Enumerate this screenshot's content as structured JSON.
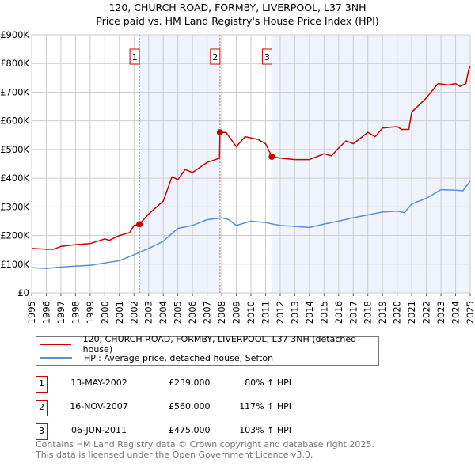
{
  "chart_data": {
    "type": "line",
    "title": "120, CHURCH ROAD, FORMBY, LIVERPOOL, L37 3NH",
    "subtitle": "Price paid vs. HM Land Registry's House Price Index (HPI)",
    "xlabel": "",
    "ylabel": "",
    "xlim": [
      1995,
      2025
    ],
    "ylim": [
      0,
      900000
    ],
    "y_ticks": [
      0,
      100000,
      200000,
      300000,
      400000,
      500000,
      600000,
      700000,
      800000,
      900000
    ],
    "y_tick_labels": [
      "£0",
      "£100K",
      "£200K",
      "£300K",
      "£400K",
      "£500K",
      "£600K",
      "£700K",
      "£800K",
      "£900K"
    ],
    "x_ticks": [
      "1995",
      "1996",
      "1997",
      "1998",
      "1999",
      "2000",
      "2001",
      "2002",
      "2003",
      "2004",
      "2005",
      "2006",
      "2007",
      "2008",
      "2009",
      "2010",
      "2011",
      "2012",
      "2013",
      "2014",
      "2015",
      "2016",
      "2017",
      "2018",
      "2019",
      "2020",
      "2021",
      "2022",
      "2023",
      "2024",
      "2025"
    ],
    "grid": true,
    "shaded_ranges": [
      [
        2002.37,
        2007.88
      ],
      [
        2011.43,
        2025
      ]
    ],
    "series": [
      {
        "name": "120, CHURCH ROAD, FORMBY, LIVERPOOL, L37 3NH (detached house)",
        "color": "#cc0000",
        "x": [
          1995,
          1996,
          1996.5,
          1997,
          1998,
          1999,
          2000,
          2000.3,
          2001,
          2001.7,
          2002,
          2002.37,
          2003,
          2004,
          2004.6,
          2005,
          2005.5,
          2006,
          2007,
          2007.85,
          2007.88,
          2008.3,
          2009,
          2009.6,
          2010.5,
          2011,
          2011.43,
          2012,
          2013,
          2014,
          2015,
          2015.5,
          2016,
          2016.5,
          2017,
          2018,
          2018.5,
          2019,
          2020,
          2020.3,
          2020.8,
          2021,
          2022,
          2022.8,
          2023.5,
          2024,
          2024.3,
          2024.7,
          2024.9,
          2025
        ],
        "y": [
          155000,
          152000,
          152000,
          162000,
          168000,
          172000,
          188000,
          183000,
          200000,
          210000,
          235000,
          239000,
          275000,
          320000,
          405000,
          395000,
          430000,
          420000,
          455000,
          470000,
          560000,
          560000,
          510000,
          545000,
          535000,
          520000,
          475000,
          470000,
          465000,
          465000,
          485000,
          478000,
          505000,
          530000,
          520000,
          560000,
          545000,
          575000,
          580000,
          570000,
          570000,
          630000,
          680000,
          730000,
          725000,
          730000,
          720000,
          730000,
          780000,
          790000
        ]
      },
      {
        "name": "HPI: Average price, detached house, Sefton",
        "color": "#5b8fd4",
        "x": [
          1995,
          1996,
          1997,
          1998,
          1999,
          2000,
          2001,
          2002,
          2003,
          2004,
          2005,
          2006,
          2007,
          2008,
          2008.5,
          2009,
          2010,
          2011,
          2012,
          2013,
          2014,
          2015,
          2016,
          2017,
          2018,
          2019,
          2020,
          2020.5,
          2021,
          2022,
          2023,
          2024,
          2024.5,
          2025
        ],
        "y": [
          88000,
          85000,
          90000,
          93000,
          96000,
          104000,
          112000,
          133000,
          155000,
          180000,
          225000,
          235000,
          255000,
          262000,
          255000,
          235000,
          250000,
          245000,
          235000,
          232000,
          228000,
          240000,
          250000,
          262000,
          272000,
          282000,
          285000,
          280000,
          310000,
          330000,
          360000,
          358000,
          356000,
          390000
        ]
      }
    ],
    "sales": [
      {
        "label": "1",
        "x": 2002.37,
        "y": 239000
      },
      {
        "label": "2",
        "x": 2007.88,
        "y": 560000
      },
      {
        "label": "3",
        "x": 2011.43,
        "y": 475000
      }
    ],
    "legend_placement": "below"
  },
  "legend": {
    "red": "120, CHURCH ROAD, FORMBY, LIVERPOOL, L37 3NH (detached house)",
    "blue": "HPI: Average price, detached house, Sefton"
  },
  "transactions": [
    {
      "num": "1",
      "date": "13-MAY-2002",
      "price": "£239,000",
      "hpi": "80% ↑ HPI"
    },
    {
      "num": "2",
      "date": "16-NOV-2007",
      "price": "£560,000",
      "hpi": "117% ↑ HPI"
    },
    {
      "num": "3",
      "date": "06-JUN-2011",
      "price": "£475,000",
      "hpi": "103% ↑ HPI"
    }
  ],
  "footer": {
    "line1": "Contains HM Land Registry data © Crown copyright and database right 2025.",
    "line2": "This data is licensed under the Open Government Licence v3.0."
  }
}
